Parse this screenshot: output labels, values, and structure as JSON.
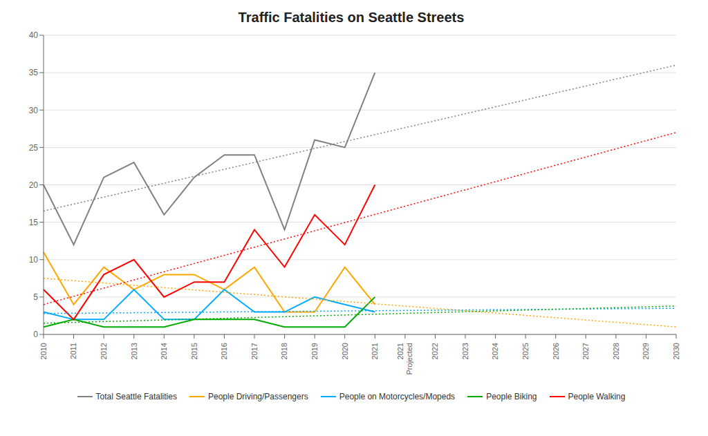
{
  "chart_data": {
    "type": "line",
    "title": "Traffic Fatalities on Seattle Streets",
    "categories": [
      "2010",
      "2011",
      "2012",
      "2013",
      "2014",
      "2015",
      "2016",
      "2017",
      "2018",
      "2019",
      "2020",
      "2021",
      "2021\nProjected",
      "2022",
      "2023",
      "2024",
      "2025",
      "2026",
      "2027",
      "2028",
      "2029",
      "2030"
    ],
    "series": [
      {
        "name": "Total Seattle Fatalities",
        "color": "#808080",
        "line_style": "solid",
        "values": [
          20,
          12,
          21,
          23,
          16,
          21,
          24,
          24,
          14,
          26,
          25,
          35,
          null,
          null,
          null,
          null,
          null,
          null,
          null,
          null,
          null,
          null
        ]
      },
      {
        "name": "People Driving/Passengers",
        "color": "#FFA500",
        "line_style": "solid",
        "values": [
          11,
          4,
          9,
          6,
          8,
          8,
          6,
          9,
          3,
          3,
          9,
          4,
          null,
          null,
          null,
          null,
          null,
          null,
          null,
          null,
          null,
          null
        ]
      },
      {
        "name": "People on Motorcycles/Mopeds",
        "color": "#00AAFF",
        "line_style": "solid",
        "values": [
          3,
          2,
          2,
          6,
          2,
          2,
          6,
          3,
          3,
          5,
          4,
          3,
          null,
          null,
          null,
          null,
          null,
          null,
          null,
          null,
          null,
          null
        ]
      },
      {
        "name": "People Biking",
        "color": "#00AA00",
        "line_style": "solid",
        "values": [
          1,
          2,
          1,
          1,
          1,
          2,
          2,
          2,
          1,
          1,
          1,
          5,
          null,
          null,
          null,
          null,
          null,
          null,
          null,
          null,
          null,
          null
        ]
      },
      {
        "name": "People Walking",
        "color": "#FF0000",
        "line_style": "solid",
        "values": [
          6,
          2,
          8,
          10,
          5,
          7,
          7,
          14,
          9,
          16,
          12,
          20,
          null,
          null,
          null,
          null,
          null,
          null,
          null,
          null,
          null,
          null
        ]
      },
      {
        "color": "#808080",
        "line_style": "dotted",
        "x": [
          "2010",
          "2030"
        ],
        "values": [
          16.5,
          36.0
        ]
      },
      {
        "color": "#FF0000",
        "line_style": "dotted",
        "x": [
          "2010",
          "2030"
        ],
        "values": [
          4.0,
          27.0
        ]
      },
      {
        "color": "#FFA500",
        "line_style": "dotted",
        "x": [
          "2010",
          "2030"
        ],
        "values": [
          7.5,
          1.0
        ]
      },
      {
        "color": "#00AAFF",
        "line_style": "dotted",
        "x": [
          "2010",
          "2030"
        ],
        "values": [
          2.8,
          3.5
        ]
      },
      {
        "color": "#00AA00",
        "line_style": "dotted",
        "x": [
          "2010",
          "2030"
        ],
        "values": [
          1.5,
          3.8
        ]
      }
    ],
    "ylim": [
      0,
      40
    ],
    "yticks": [
      0,
      5,
      10,
      15,
      20,
      25,
      30,
      35,
      40
    ],
    "grid": true,
    "legend": "bottom"
  }
}
